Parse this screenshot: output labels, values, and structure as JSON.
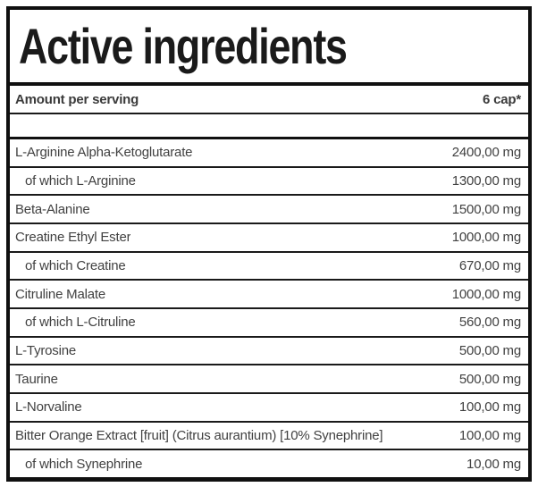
{
  "panel": {
    "title": "Active ingredients",
    "header": {
      "label": "Amount per serving",
      "amount": "6 cap*"
    },
    "rows": [
      {
        "label": "L-Arginine Alpha-Ketoglutarate",
        "amount": "2400,00 mg",
        "indent": false
      },
      {
        "label": "of which L-Arginine",
        "amount": "1300,00 mg",
        "indent": true
      },
      {
        "label": "Beta-Alanine",
        "amount": "1500,00 mg",
        "indent": false
      },
      {
        "label": "Creatine Ethyl Ester",
        "amount": "1000,00 mg",
        "indent": false
      },
      {
        "label": "of which Creatine",
        "amount": "670,00 mg",
        "indent": true
      },
      {
        "label": "Citruline Malate",
        "amount": "1000,00 mg",
        "indent": false
      },
      {
        "label": "of which L-Citruline",
        "amount": "560,00 mg",
        "indent": true
      },
      {
        "label": "L-Tyrosine",
        "amount": "500,00 mg",
        "indent": false
      },
      {
        "label": "Taurine",
        "amount": "500,00 mg",
        "indent": false
      },
      {
        "label": "L-Norvaline",
        "amount": "100,00 mg",
        "indent": false
      },
      {
        "label": "Bitter Orange Extract [fruit] (Citrus aurantium) [10% Synephrine]",
        "amount": "100,00 mg",
        "indent": false
      },
      {
        "label": "of which Synephrine",
        "amount": "10,00 mg",
        "indent": true
      }
    ],
    "colors": {
      "border": "#101010",
      "divider": "#1a1a1a",
      "title_text": "#1a1a1a",
      "header_text": "#3a3a3a",
      "row_text": "#414141",
      "background": "#ffffff"
    }
  }
}
